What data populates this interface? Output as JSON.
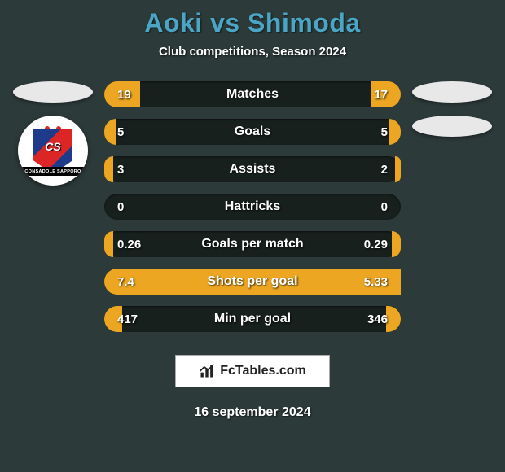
{
  "background_color": "#2d3a3a",
  "title": {
    "text": "Aoki vs Shimoda",
    "color": "#4aa6c4",
    "fontsize": 32
  },
  "subtitle": {
    "text": "Club competitions, Season 2024",
    "color": "#ffffff",
    "fontsize": 15
  },
  "left_side": {
    "flag_placeholder_color": "#e8e8e8",
    "crest": {
      "bg": "#ffffff",
      "shield_colors": [
        "#1e3a8a",
        "#dc2626"
      ],
      "initials": "CS",
      "banner_text": "CONSADOLE SAPPORO"
    }
  },
  "right_side": {
    "flag_placeholder_color": "#e8e8e8",
    "crest_placeholder_color": "#e8e8e8"
  },
  "stats": {
    "row_bg": "#17201d",
    "text_color": "#ffffff",
    "left_fill_color": "#eda621",
    "right_fill_color": "#eda621",
    "label_fontsize": 16,
    "value_fontsize": 15,
    "rows": [
      {
        "label": "Matches",
        "left": "19",
        "right": "17",
        "left_pct": 12,
        "right_pct": 10
      },
      {
        "label": "Goals",
        "left": "5",
        "right": "5",
        "left_pct": 4,
        "right_pct": 4
      },
      {
        "label": "Assists",
        "left": "3",
        "right": "2",
        "left_pct": 3,
        "right_pct": 2
      },
      {
        "label": "Hattricks",
        "left": "0",
        "right": "0",
        "left_pct": 0,
        "right_pct": 0
      },
      {
        "label": "Goals per match",
        "left": "0.26",
        "right": "0.29",
        "left_pct": 3,
        "right_pct": 3
      },
      {
        "label": "Shots per goal",
        "left": "7.4",
        "right": "5.33",
        "left_pct": 100,
        "right_pct": 72
      },
      {
        "label": "Min per goal",
        "left": "417",
        "right": "346",
        "left_pct": 6,
        "right_pct": 5
      }
    ]
  },
  "footer": {
    "logo_text": "FcTables.com",
    "logo_bg": "#ffffff",
    "date_text": "16 september 2024",
    "date_color": "#ffffff"
  }
}
